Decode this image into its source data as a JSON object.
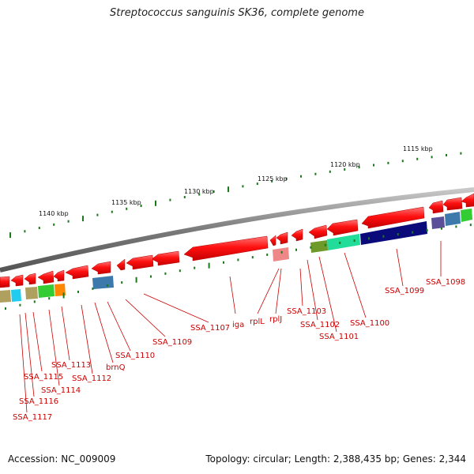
{
  "title": "Streptococcus sanguinis SK36, complete genome",
  "footer": {
    "accession": "Accession: NC_009009",
    "summary": "Topology: circular; Length: 2,388,435 bp; Genes: 2,344"
  },
  "scale_labels": [
    "1115 kbp",
    "1120 kbp",
    "1125 kbp",
    "1130 kbp",
    "1135 kbp",
    "1140 kbp"
  ],
  "gene_labels": [
    "SSA_1098",
    "SSA_1099",
    "SSA_1100",
    "SSA_1101",
    "SSA_1102",
    "SSA_1103",
    "rplJ",
    "rplL",
    "iga",
    "SSA_1107",
    "SSA_1109",
    "SSA_1110",
    "brnQ",
    "SSA_1112",
    "SSA_1113",
    "SSA_1114",
    "SSA_1115",
    "SSA_1116",
    "SSA_1117"
  ],
  "colors": {
    "backbone": "#8a8a8a",
    "gene_arrow": "#ee0000",
    "label": "#cc0000",
    "tick": "#1a7a1a",
    "cog_navy": "#0a0a7a",
    "cog_teal": "#22dd99",
    "cog_olive": "#6e9a2a",
    "cog_steel": "#3d7aab",
    "cog_purple": "#5b4f9a",
    "cog_pink": "#ee8888",
    "cog_khaki": "#b0a060",
    "cog_cyan": "#22ccee",
    "cog_green": "#33cc33",
    "cog_orange": "#ff8800"
  }
}
